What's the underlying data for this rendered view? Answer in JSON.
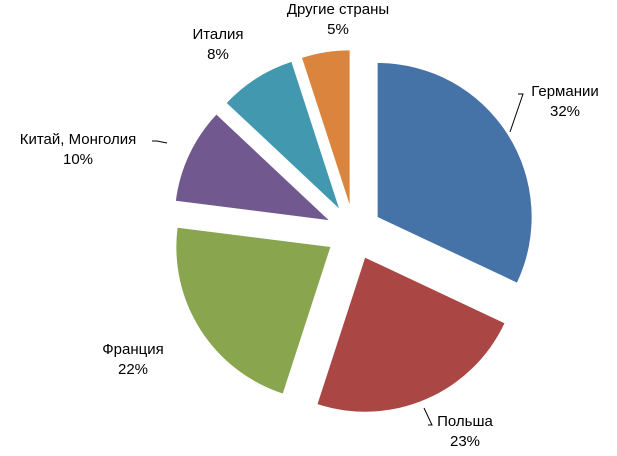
{
  "chart_data": {
    "type": "pie",
    "categories": [
      "Германии",
      "Польша",
      "Франция",
      "Китай, Монголия",
      "Италия",
      "Другие страны"
    ],
    "values": [
      32,
      23,
      22,
      10,
      8,
      5
    ],
    "value_labels": [
      "32%",
      "23%",
      "22%",
      "10%",
      "8%",
      "5%"
    ],
    "colors": [
      "#4572a7",
      "#aa4643",
      "#89a54e",
      "#71588f",
      "#4198af",
      "#db843d"
    ]
  }
}
